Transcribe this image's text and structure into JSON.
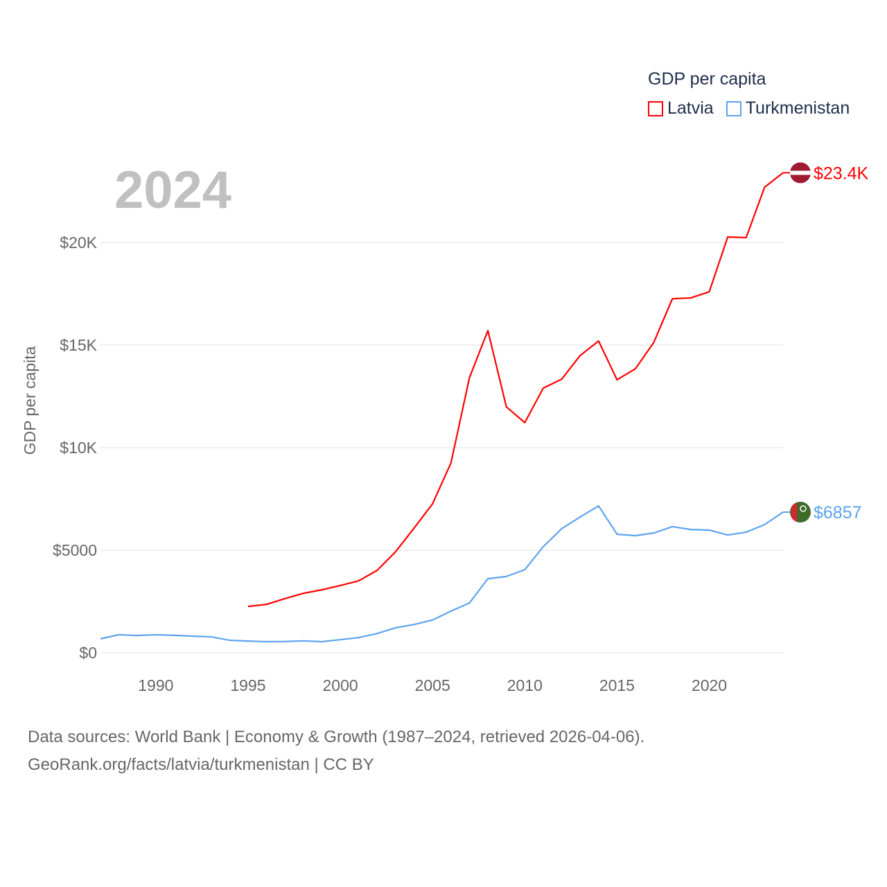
{
  "chart_data": {
    "type": "line",
    "title": "GDP per capita",
    "year_label": "2024",
    "xlabel": "",
    "ylabel": "GDP per capita",
    "xlim": [
      1987,
      2024
    ],
    "ylim": [
      0,
      25000
    ],
    "x_ticks": [
      "1990",
      "1995",
      "2000",
      "2005",
      "2010",
      "2015",
      "2020"
    ],
    "y_ticks": [
      {
        "value": 0,
        "label": "$0"
      },
      {
        "value": 5000,
        "label": "$5000"
      },
      {
        "value": 10000,
        "label": "$10K"
      },
      {
        "value": 15000,
        "label": "$15K"
      },
      {
        "value": 20000,
        "label": "$20K"
      }
    ],
    "grid": true,
    "legend_position": "top-right",
    "series": [
      {
        "name": "Latvia",
        "color": "#ff0000",
        "end_label": "$23.4K",
        "x": [
          1995,
          1996,
          1997,
          1998,
          1999,
          2000,
          2001,
          2002,
          2003,
          2004,
          2005,
          2006,
          2007,
          2008,
          2009,
          2010,
          2011,
          2012,
          2013,
          2014,
          2015,
          2016,
          2017,
          2018,
          2019,
          2020,
          2021,
          2022,
          2023,
          2024
        ],
        "values": [
          2260,
          2360,
          2640,
          2900,
          3070,
          3280,
          3510,
          4020,
          4930,
          6080,
          7260,
          9260,
          13410,
          15710,
          11990,
          11220,
          12900,
          13340,
          14490,
          15200,
          13310,
          13850,
          15140,
          17260,
          17300,
          17600,
          20270,
          20240,
          22700,
          23400
        ]
      },
      {
        "name": "Turkmenistan",
        "color": "#5ba3ef",
        "end_label": "$6857",
        "x": [
          1987,
          1988,
          1989,
          1990,
          1991,
          1992,
          1993,
          1994,
          1995,
          1996,
          1997,
          1998,
          1999,
          2000,
          2001,
          2002,
          2003,
          2004,
          2005,
          2006,
          2007,
          2008,
          2009,
          2010,
          2011,
          2012,
          2013,
          2014,
          2015,
          2016,
          2017,
          2018,
          2019,
          2020,
          2021,
          2022,
          2023,
          2024
        ],
        "values": [
          680,
          880,
          840,
          880,
          850,
          810,
          780,
          610,
          570,
          540,
          550,
          580,
          540,
          640,
          740,
          940,
          1220,
          1380,
          1600,
          2030,
          2430,
          3610,
          3720,
          4050,
          5170,
          6050,
          6620,
          7160,
          5780,
          5710,
          5840,
          6150,
          6010,
          5980,
          5740,
          5880,
          6250,
          6857
        ]
      }
    ]
  },
  "footer": {
    "line1": "Data sources: World Bank | Economy & Growth (1987–2024, retrieved 2026-04-06).",
    "line2": "GeoRank.org/facts/latvia/turkmenistan | CC BY"
  }
}
